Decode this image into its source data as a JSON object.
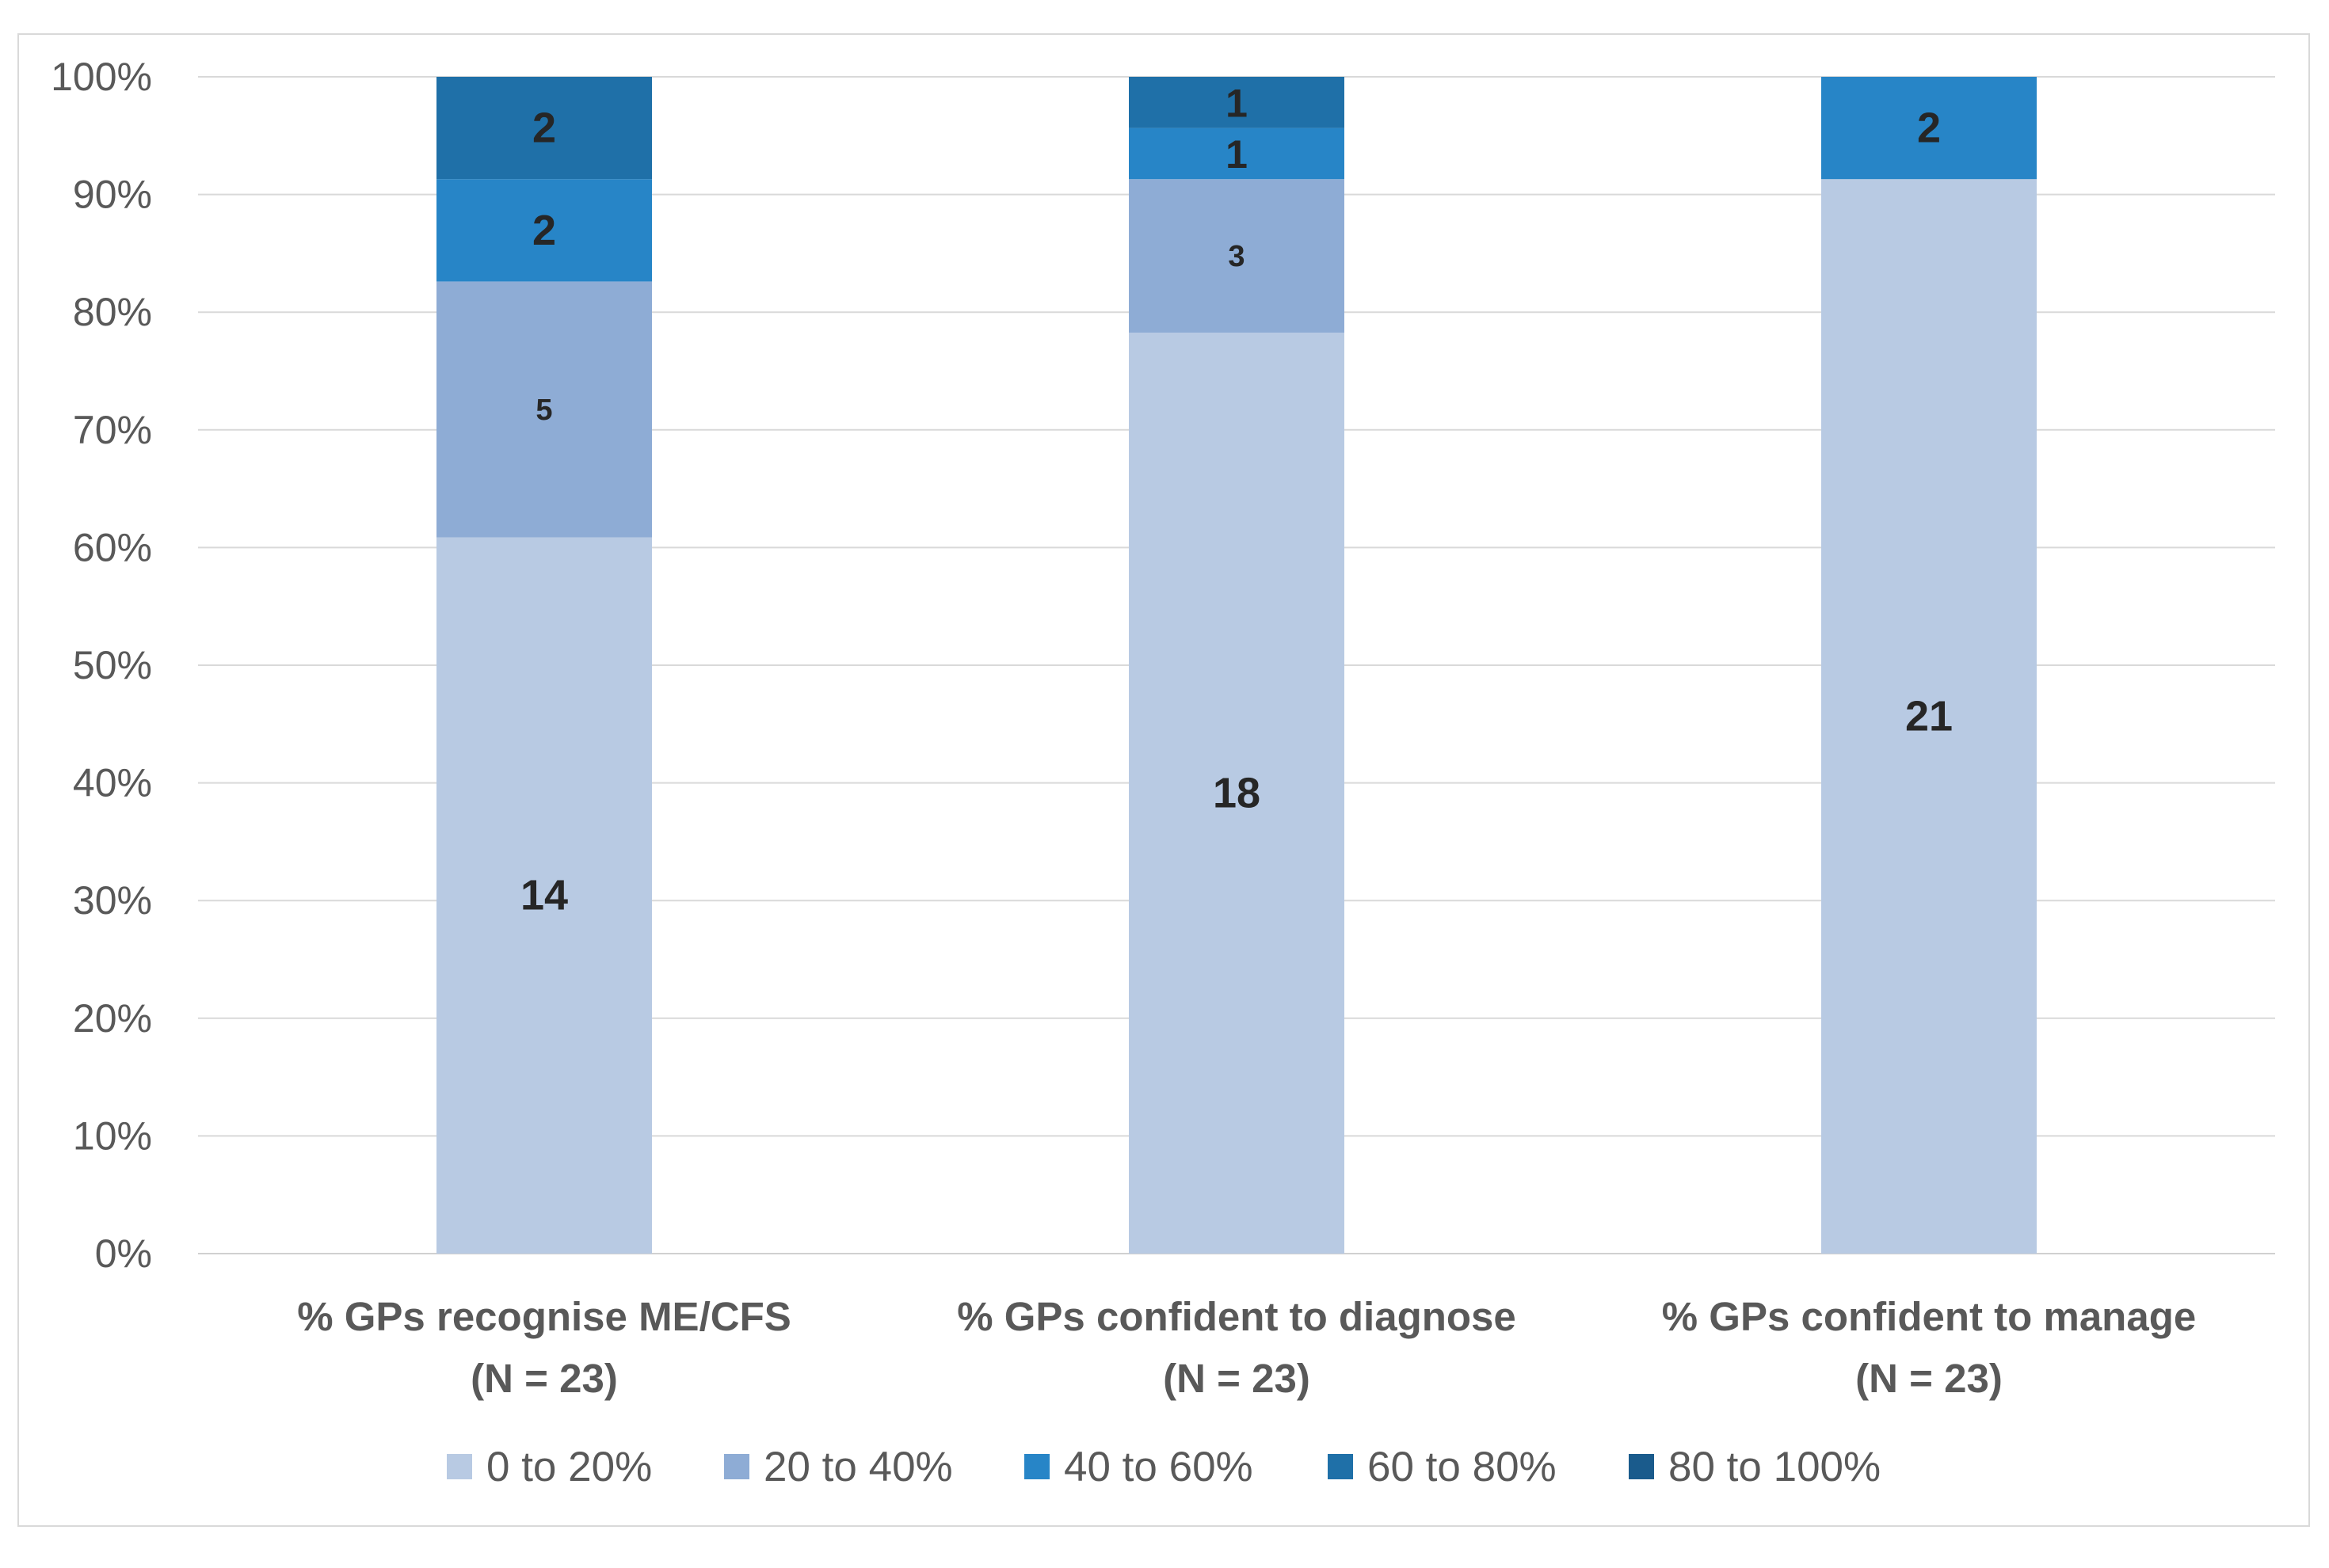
{
  "chart_data": {
    "type": "bar",
    "stacked": true,
    "percent_stacked": true,
    "title": "",
    "xlabel": "",
    "ylabel": "",
    "ylim": [
      0,
      100
    ],
    "y_ticks": [
      "0%",
      "10%",
      "20%",
      "30%",
      "40%",
      "50%",
      "60%",
      "70%",
      "80%",
      "90%",
      "100%"
    ],
    "grid": true,
    "legend_position": "bottom",
    "categories": [
      [
        "% GPs recognise ME/CFS",
        "(N = 23)"
      ],
      [
        "% GPs confident to diagnose",
        "(N = 23)"
      ],
      [
        "% GPs confident to manage",
        "(N = 23)"
      ]
    ],
    "series": [
      {
        "name": "0 to 20%",
        "color": "#b8cae3",
        "values": [
          14,
          18,
          21
        ]
      },
      {
        "name": "20 to 40%",
        "color": "#8eacd5",
        "values": [
          5,
          3,
          0
        ]
      },
      {
        "name": "40 to 60%",
        "color": "#2785c7",
        "values": [
          2,
          1,
          2
        ]
      },
      {
        "name": "60 to 80%",
        "color": "#1f70a8",
        "values": [
          2,
          1,
          0
        ]
      },
      {
        "name": "80 to 100%",
        "color": "#1a5b8c",
        "values": [
          0,
          0,
          0
        ]
      }
    ],
    "data_labels": [
      [
        "14",
        "5",
        "2",
        "2",
        ""
      ],
      [
        "18",
        "3",
        "1",
        "1",
        ""
      ],
      [
        "21",
        "",
        "2",
        "",
        ""
      ]
    ]
  }
}
